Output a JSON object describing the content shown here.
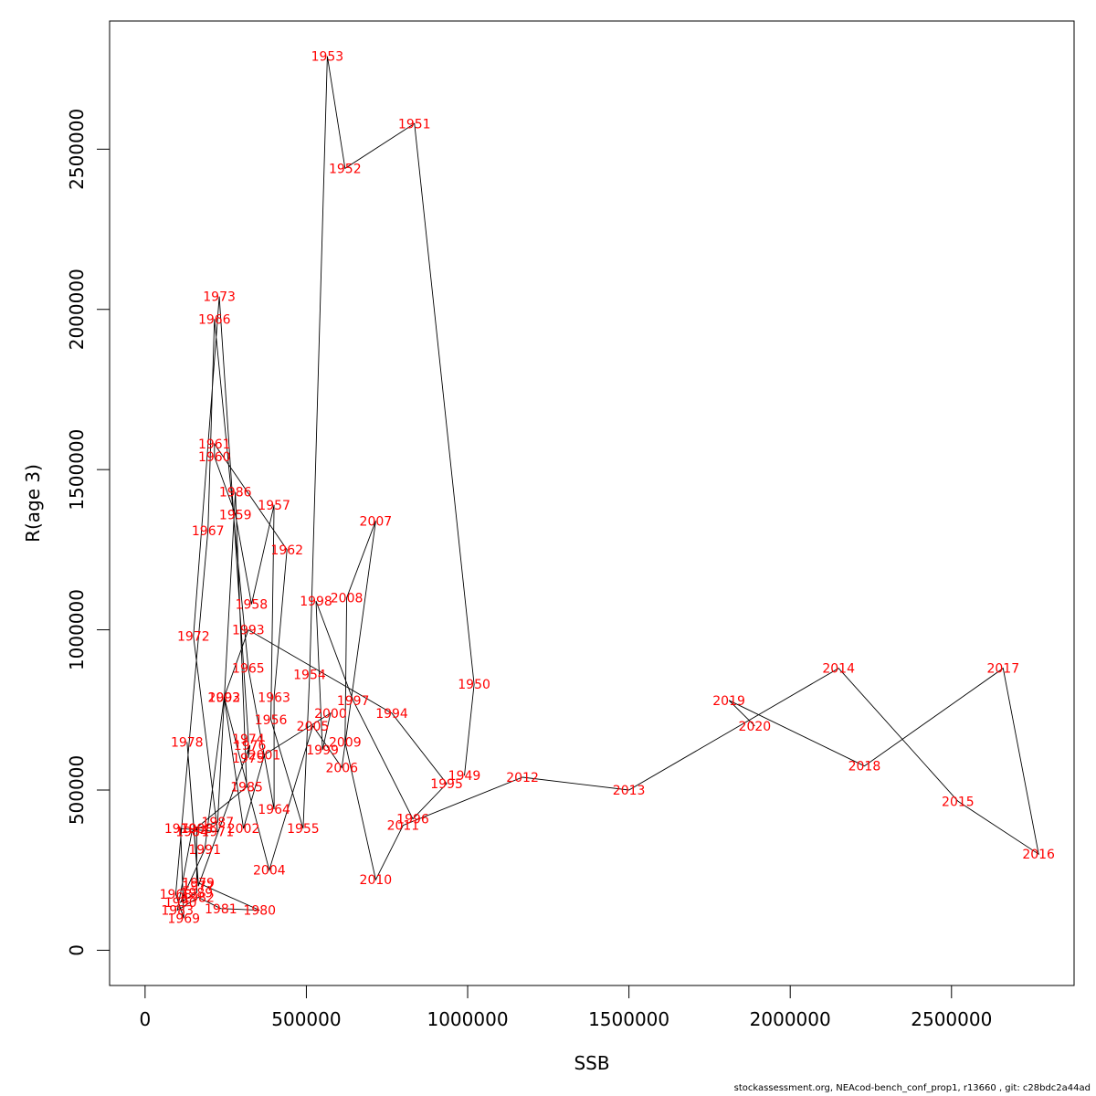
{
  "chart_data": {
    "type": "line",
    "xlabel": "SSB",
    "ylabel": "R(age 3)",
    "xlim": [
      -110000,
      2880000
    ],
    "ylim": [
      -110000,
      2900000
    ],
    "xticks": [
      0,
      500000,
      1000000,
      1500000,
      2000000,
      2500000
    ],
    "xtick_labels": [
      "0",
      "500000",
      "1000000",
      "1500000",
      "2000000",
      "2500000"
    ],
    "yticks": [
      0,
      500000,
      1000000,
      1500000,
      2000000,
      2500000
    ],
    "ytick_labels": [
      "0",
      "500000",
      "1000000",
      "1500000",
      "2000000",
      "2500000"
    ],
    "grid": false,
    "line_color": "#000000",
    "label_color": "#ff0000",
    "points": [
      {
        "year": "1949",
        "x": 990000,
        "y": 545000
      },
      {
        "year": "1950",
        "x": 1020000,
        "y": 830000
      },
      {
        "year": "1951",
        "x": 835000,
        "y": 2580000
      },
      {
        "year": "1952",
        "x": 620000,
        "y": 2440000
      },
      {
        "year": "1953",
        "x": 565000,
        "y": 2790000
      },
      {
        "year": "1954",
        "x": 510000,
        "y": 860000
      },
      {
        "year": "1955",
        "x": 490000,
        "y": 380000
      },
      {
        "year": "1956",
        "x": 390000,
        "y": 720000
      },
      {
        "year": "1957",
        "x": 400000,
        "y": 1390000
      },
      {
        "year": "1958",
        "x": 330000,
        "y": 1080000
      },
      {
        "year": "1959",
        "x": 280000,
        "y": 1360000
      },
      {
        "year": "1960",
        "x": 215000,
        "y": 1540000
      },
      {
        "year": "1961",
        "x": 215000,
        "y": 1580000
      },
      {
        "year": "1962",
        "x": 440000,
        "y": 1250000
      },
      {
        "year": "1963",
        "x": 400000,
        "y": 790000
      },
      {
        "year": "1964",
        "x": 400000,
        "y": 440000
      },
      {
        "year": "1965",
        "x": 320000,
        "y": 880000
      },
      {
        "year": "1966",
        "x": 215000,
        "y": 1970000
      },
      {
        "year": "1967",
        "x": 195000,
        "y": 1310000
      },
      {
        "year": "1968",
        "x": 95000,
        "y": 175000
      },
      {
        "year": "1969",
        "x": 120000,
        "y": 100000
      },
      {
        "year": "1970",
        "x": 110000,
        "y": 380000
      },
      {
        "year": "1971",
        "x": 225000,
        "y": 370000
      },
      {
        "year": "1972",
        "x": 150000,
        "y": 980000
      },
      {
        "year": "1973",
        "x": 230000,
        "y": 2040000
      },
      {
        "year": "1974",
        "x": 320000,
        "y": 660000
      },
      {
        "year": "1975",
        "x": 320000,
        "y": 600000
      },
      {
        "year": "1976",
        "x": 325000,
        "y": 640000
      },
      {
        "year": "1977",
        "x": 165000,
        "y": 200000
      },
      {
        "year": "1978",
        "x": 130000,
        "y": 650000
      },
      {
        "year": "1979",
        "x": 165000,
        "y": 210000
      },
      {
        "year": "1980",
        "x": 355000,
        "y": 125000
      },
      {
        "year": "1981",
        "x": 235000,
        "y": 130000
      },
      {
        "year": "1982",
        "x": 165000,
        "y": 165000
      },
      {
        "year": "1983",
        "x": 100000,
        "y": 125000
      },
      {
        "year": "1984",
        "x": 145000,
        "y": 370000
      },
      {
        "year": "1985",
        "x": 315000,
        "y": 510000
      },
      {
        "year": "1986",
        "x": 280000,
        "y": 1430000
      },
      {
        "year": "1987",
        "x": 225000,
        "y": 400000
      },
      {
        "year": "1988",
        "x": 160000,
        "y": 380000
      },
      {
        "year": "1989",
        "x": 160000,
        "y": 180000
      },
      {
        "year": "1990",
        "x": 110000,
        "y": 150000
      },
      {
        "year": "1991",
        "x": 185000,
        "y": 315000
      },
      {
        "year": "1992",
        "x": 245000,
        "y": 790000
      },
      {
        "year": "1993",
        "x": 320000,
        "y": 1000000
      },
      {
        "year": "1994",
        "x": 765000,
        "y": 740000
      },
      {
        "year": "1995",
        "x": 935000,
        "y": 520000
      },
      {
        "year": "1996",
        "x": 830000,
        "y": 410000
      },
      {
        "year": "1997",
        "x": 645000,
        "y": 780000
      },
      {
        "year": "1998",
        "x": 530000,
        "y": 1090000
      },
      {
        "year": "1999",
        "x": 550000,
        "y": 625000
      },
      {
        "year": "2000",
        "x": 575000,
        "y": 740000
      },
      {
        "year": "2001",
        "x": 370000,
        "y": 610000
      },
      {
        "year": "2002",
        "x": 305000,
        "y": 380000
      },
      {
        "year": "2003",
        "x": 245000,
        "y": 790000
      },
      {
        "year": "2004",
        "x": 385000,
        "y": 250000
      },
      {
        "year": "2005",
        "x": 520000,
        "y": 700000
      },
      {
        "year": "2006",
        "x": 610000,
        "y": 570000
      },
      {
        "year": "2007",
        "x": 715000,
        "y": 1340000
      },
      {
        "year": "2008",
        "x": 625000,
        "y": 1100000
      },
      {
        "year": "2009",
        "x": 620000,
        "y": 650000
      },
      {
        "year": "2010",
        "x": 715000,
        "y": 220000
      },
      {
        "year": "2011",
        "x": 800000,
        "y": 390000
      },
      {
        "year": "2012",
        "x": 1170000,
        "y": 540000
      },
      {
        "year": "2013",
        "x": 1500000,
        "y": 500000
      },
      {
        "year": "2014",
        "x": 2150000,
        "y": 880000
      },
      {
        "year": "2015",
        "x": 2520000,
        "y": 465000
      },
      {
        "year": "2016",
        "x": 2770000,
        "y": 300000
      },
      {
        "year": "2017",
        "x": 2660000,
        "y": 880000
      },
      {
        "year": "2018",
        "x": 2230000,
        "y": 575000
      },
      {
        "year": "2019",
        "x": 1810000,
        "y": 780000
      },
      {
        "year": "2020",
        "x": 1890000,
        "y": 700000
      }
    ]
  },
  "footer": {
    "text": "stockassessment.org, NEAcod-bench_conf_prop1, r13660 , git: c28bdc2a44ad"
  }
}
